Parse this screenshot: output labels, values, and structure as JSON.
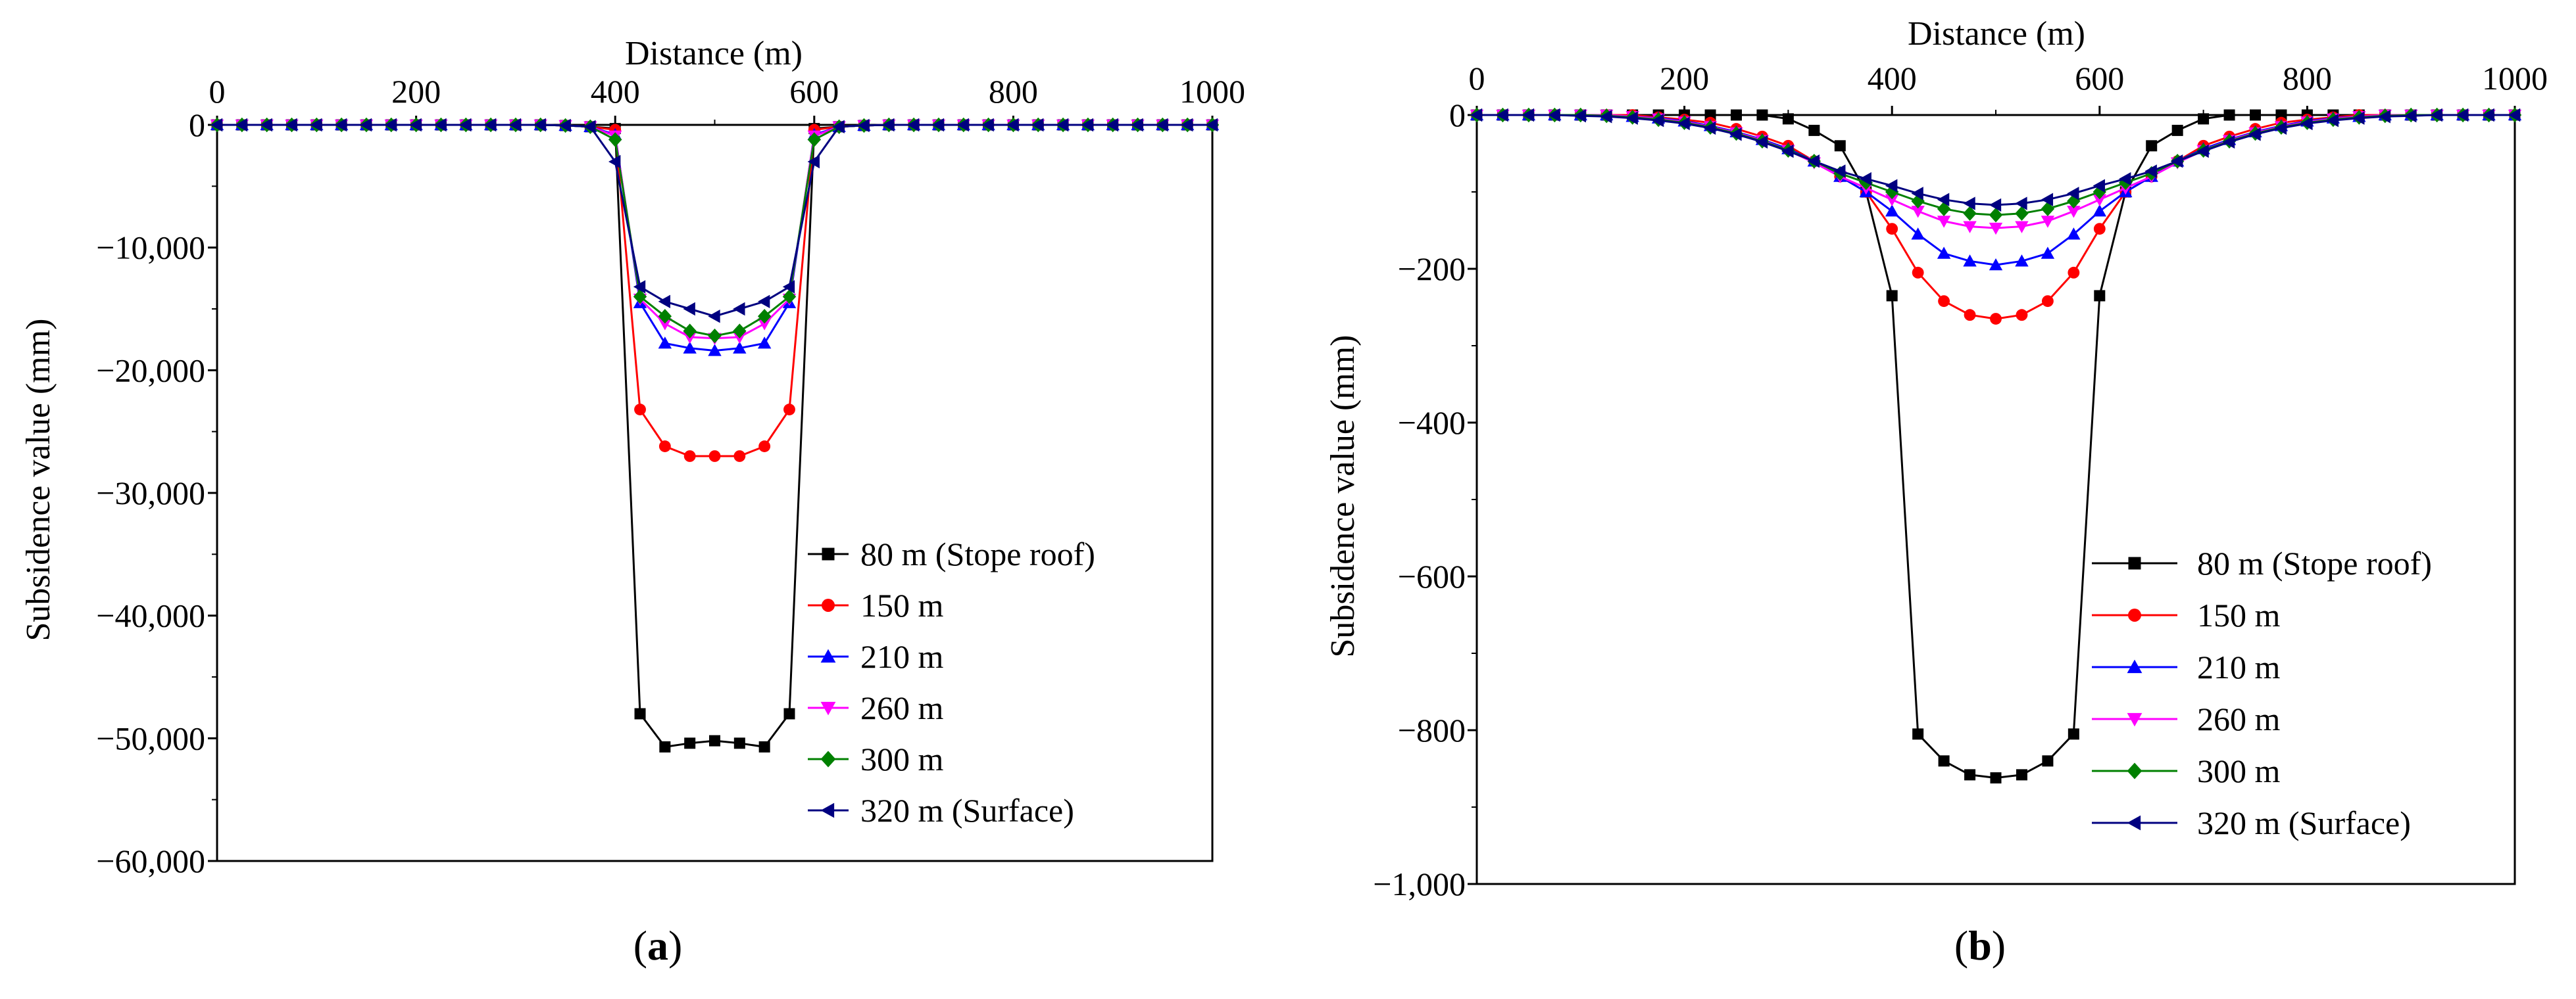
{
  "colors": {
    "80": "#000000",
    "150": "#ff0000",
    "210": "#0000ff",
    "260": "#ff00ff",
    "300": "#008000",
    "320": "#000080"
  },
  "chart_data": [
    {
      "id": "a",
      "type": "line",
      "panel_label": "a",
      "xlabel": "Distance (m)",
      "ylabel": "Subsidence value (mm)",
      "xlim": [
        0,
        1000
      ],
      "ylim": [
        -60000,
        0
      ],
      "x_ticks": [
        0,
        200,
        400,
        600,
        800,
        1000
      ],
      "x_tick_labels": [
        "0",
        "200",
        "400",
        "600",
        "800",
        "1000"
      ],
      "y_ticks": [
        0,
        -10000,
        -20000,
        -30000,
        -40000,
        -50000,
        -60000
      ],
      "y_tick_labels": [
        "0",
        "−10,000",
        "−20,000",
        "−30,000",
        "−40,000",
        "−50,000",
        "−60,000"
      ],
      "x_axis_position": "top",
      "legend_position": "bottom-right",
      "x": [
        0,
        25,
        50,
        75,
        100,
        125,
        150,
        175,
        200,
        225,
        250,
        275,
        300,
        325,
        350,
        375,
        400,
        425,
        450,
        475,
        500,
        525,
        550,
        575,
        600,
        625,
        650,
        675,
        700,
        725,
        750,
        775,
        800,
        825,
        850,
        875,
        900,
        925,
        950,
        975,
        1000
      ],
      "series": [
        {
          "name": "80 m (Stope roof)",
          "color_key": "80",
          "marker": "square",
          "values": [
            0,
            0,
            0,
            0,
            0,
            0,
            0,
            0,
            0,
            0,
            0,
            0,
            0,
            0,
            -50,
            -150,
            -300,
            -48000,
            -50700,
            -50400,
            -50200,
            -50400,
            -50700,
            -48000,
            -300,
            -150,
            -50,
            0,
            0,
            0,
            0,
            0,
            0,
            0,
            0,
            0,
            0,
            0,
            0,
            0,
            0
          ]
        },
        {
          "name": "150 m",
          "color_key": "150",
          "marker": "circle",
          "values": [
            0,
            0,
            0,
            0,
            0,
            0,
            0,
            0,
            0,
            0,
            0,
            0,
            0,
            0,
            -50,
            -150,
            -400,
            -23200,
            -26200,
            -27000,
            -27000,
            -27000,
            -26200,
            -23200,
            -400,
            -150,
            -50,
            0,
            0,
            0,
            0,
            0,
            0,
            0,
            0,
            0,
            0,
            0,
            0,
            0,
            0
          ]
        },
        {
          "name": "210 m",
          "color_key": "210",
          "marker": "triangle-up",
          "values": [
            0,
            0,
            0,
            0,
            0,
            0,
            0,
            0,
            0,
            0,
            0,
            0,
            0,
            0,
            -50,
            -150,
            -800,
            -14500,
            -17800,
            -18200,
            -18400,
            -18200,
            -17800,
            -14500,
            -800,
            -150,
            -50,
            0,
            0,
            0,
            0,
            0,
            0,
            0,
            0,
            0,
            0,
            0,
            0,
            0,
            0
          ]
        },
        {
          "name": "260 m",
          "color_key": "260",
          "marker": "triangle-down",
          "values": [
            0,
            0,
            0,
            0,
            0,
            0,
            0,
            0,
            0,
            0,
            0,
            0,
            0,
            0,
            -50,
            -150,
            -900,
            -14200,
            -16200,
            -17300,
            -17400,
            -17300,
            -16200,
            -14200,
            -900,
            -150,
            -50,
            0,
            0,
            0,
            0,
            0,
            0,
            0,
            0,
            0,
            0,
            0,
            0,
            0,
            0
          ]
        },
        {
          "name": "300 m",
          "color_key": "300",
          "marker": "diamond",
          "values": [
            0,
            0,
            0,
            0,
            0,
            0,
            0,
            0,
            0,
            0,
            0,
            0,
            0,
            0,
            -50,
            -150,
            -1200,
            -14000,
            -15600,
            -16800,
            -17200,
            -16800,
            -15600,
            -14000,
            -1200,
            -150,
            -50,
            0,
            0,
            0,
            0,
            0,
            0,
            0,
            0,
            0,
            0,
            0,
            0,
            0,
            0
          ]
        },
        {
          "name": "320 m (Surface)",
          "color_key": "320",
          "marker": "triangle-left",
          "values": [
            0,
            0,
            0,
            0,
            0,
            0,
            0,
            0,
            0,
            0,
            0,
            0,
            0,
            0,
            -50,
            -150,
            -3000,
            -13200,
            -14400,
            -15000,
            -15600,
            -15000,
            -14400,
            -13200,
            -3000,
            -150,
            -50,
            0,
            0,
            0,
            0,
            0,
            0,
            0,
            0,
            0,
            0,
            0,
            0,
            0,
            0
          ]
        }
      ]
    },
    {
      "id": "b",
      "type": "line",
      "panel_label": "b",
      "xlabel": "Distance (m)",
      "ylabel": "Subsidence value (mm)",
      "xlim": [
        0,
        1000
      ],
      "ylim": [
        -1000,
        0
      ],
      "x_ticks": [
        0,
        200,
        400,
        600,
        800,
        1000
      ],
      "x_tick_labels": [
        "0",
        "200",
        "400",
        "600",
        "800",
        "1000"
      ],
      "y_ticks": [
        0,
        -200,
        -400,
        -600,
        -800,
        -1000
      ],
      "y_tick_labels": [
        "0",
        "−200",
        "−400",
        "−600",
        "−800",
        "−1,000"
      ],
      "x_axis_position": "top",
      "legend_position": "bottom-right",
      "x": [
        0,
        25,
        50,
        75,
        100,
        125,
        150,
        175,
        200,
        225,
        250,
        275,
        300,
        325,
        350,
        375,
        400,
        425,
        450,
        475,
        500,
        525,
        550,
        575,
        600,
        625,
        650,
        675,
        700,
        725,
        750,
        775,
        800,
        825,
        850,
        875,
        900,
        925,
        950,
        975,
        1000
      ],
      "series": [
        {
          "name": "80 m (Stope roof)",
          "color_key": "80",
          "marker": "square",
          "values": [
            0,
            0,
            0,
            0,
            0,
            0,
            0,
            0,
            0,
            0,
            0,
            0,
            -5,
            -20,
            -40,
            -100,
            -235,
            -805,
            -840,
            -858,
            -862,
            -858,
            -840,
            -805,
            -235,
            -100,
            -40,
            -20,
            -5,
            0,
            0,
            0,
            0,
            0,
            0,
            0,
            0,
            0,
            0,
            0,
            0
          ]
        },
        {
          "name": "150 m",
          "color_key": "150",
          "marker": "circle",
          "values": [
            0,
            0,
            0,
            0,
            0,
            0,
            0,
            -3,
            -6,
            -10,
            -18,
            -28,
            -40,
            -60,
            -80,
            -100,
            -148,
            -205,
            -242,
            -260,
            -265,
            -260,
            -242,
            -205,
            -148,
            -100,
            -80,
            -60,
            -40,
            -28,
            -18,
            -10,
            -6,
            -3,
            0,
            0,
            0,
            0,
            0,
            0,
            0
          ]
        },
        {
          "name": "210 m",
          "color_key": "210",
          "marker": "triangle-up",
          "values": [
            0,
            0,
            0,
            0,
            0,
            0,
            -2,
            -4,
            -8,
            -14,
            -22,
            -32,
            -44,
            -60,
            -80,
            -100,
            -125,
            -155,
            -180,
            -190,
            -195,
            -190,
            -180,
            -155,
            -125,
            -100,
            -80,
            -60,
            -44,
            -32,
            -22,
            -14,
            -8,
            -4,
            -2,
            0,
            0,
            0,
            0,
            0,
            0
          ]
        },
        {
          "name": "260 m",
          "color_key": "260",
          "marker": "triangle-down",
          "values": [
            0,
            0,
            0,
            0,
            0,
            0,
            -2,
            -5,
            -9,
            -15,
            -23,
            -33,
            -46,
            -62,
            -80,
            -95,
            -110,
            -125,
            -138,
            -145,
            -147,
            -145,
            -138,
            -125,
            -110,
            -95,
            -80,
            -62,
            -46,
            -33,
            -23,
            -15,
            -9,
            -5,
            -2,
            0,
            0,
            0,
            0,
            0,
            0
          ]
        },
        {
          "name": "300 m",
          "color_key": "300",
          "marker": "diamond",
          "values": [
            0,
            0,
            0,
            0,
            0,
            -1,
            -3,
            -6,
            -10,
            -16,
            -24,
            -34,
            -46,
            -60,
            -76,
            -88,
            -100,
            -112,
            -122,
            -128,
            -130,
            -128,
            -122,
            -112,
            -100,
            -88,
            -76,
            -60,
            -46,
            -34,
            -24,
            -16,
            -10,
            -6,
            -3,
            -1,
            0,
            0,
            0,
            0,
            0
          ]
        },
        {
          "name": "320 m (Surface)",
          "color_key": "320",
          "marker": "triangle-left",
          "values": [
            0,
            0,
            0,
            0,
            -1,
            -2,
            -4,
            -7,
            -11,
            -17,
            -25,
            -35,
            -47,
            -60,
            -73,
            -83,
            -92,
            -102,
            -110,
            -115,
            -117,
            -115,
            -110,
            -102,
            -92,
            -83,
            -73,
            -60,
            -47,
            -35,
            -25,
            -17,
            -11,
            -7,
            -4,
            -2,
            -1,
            0,
            0,
            0,
            0
          ]
        }
      ]
    }
  ]
}
